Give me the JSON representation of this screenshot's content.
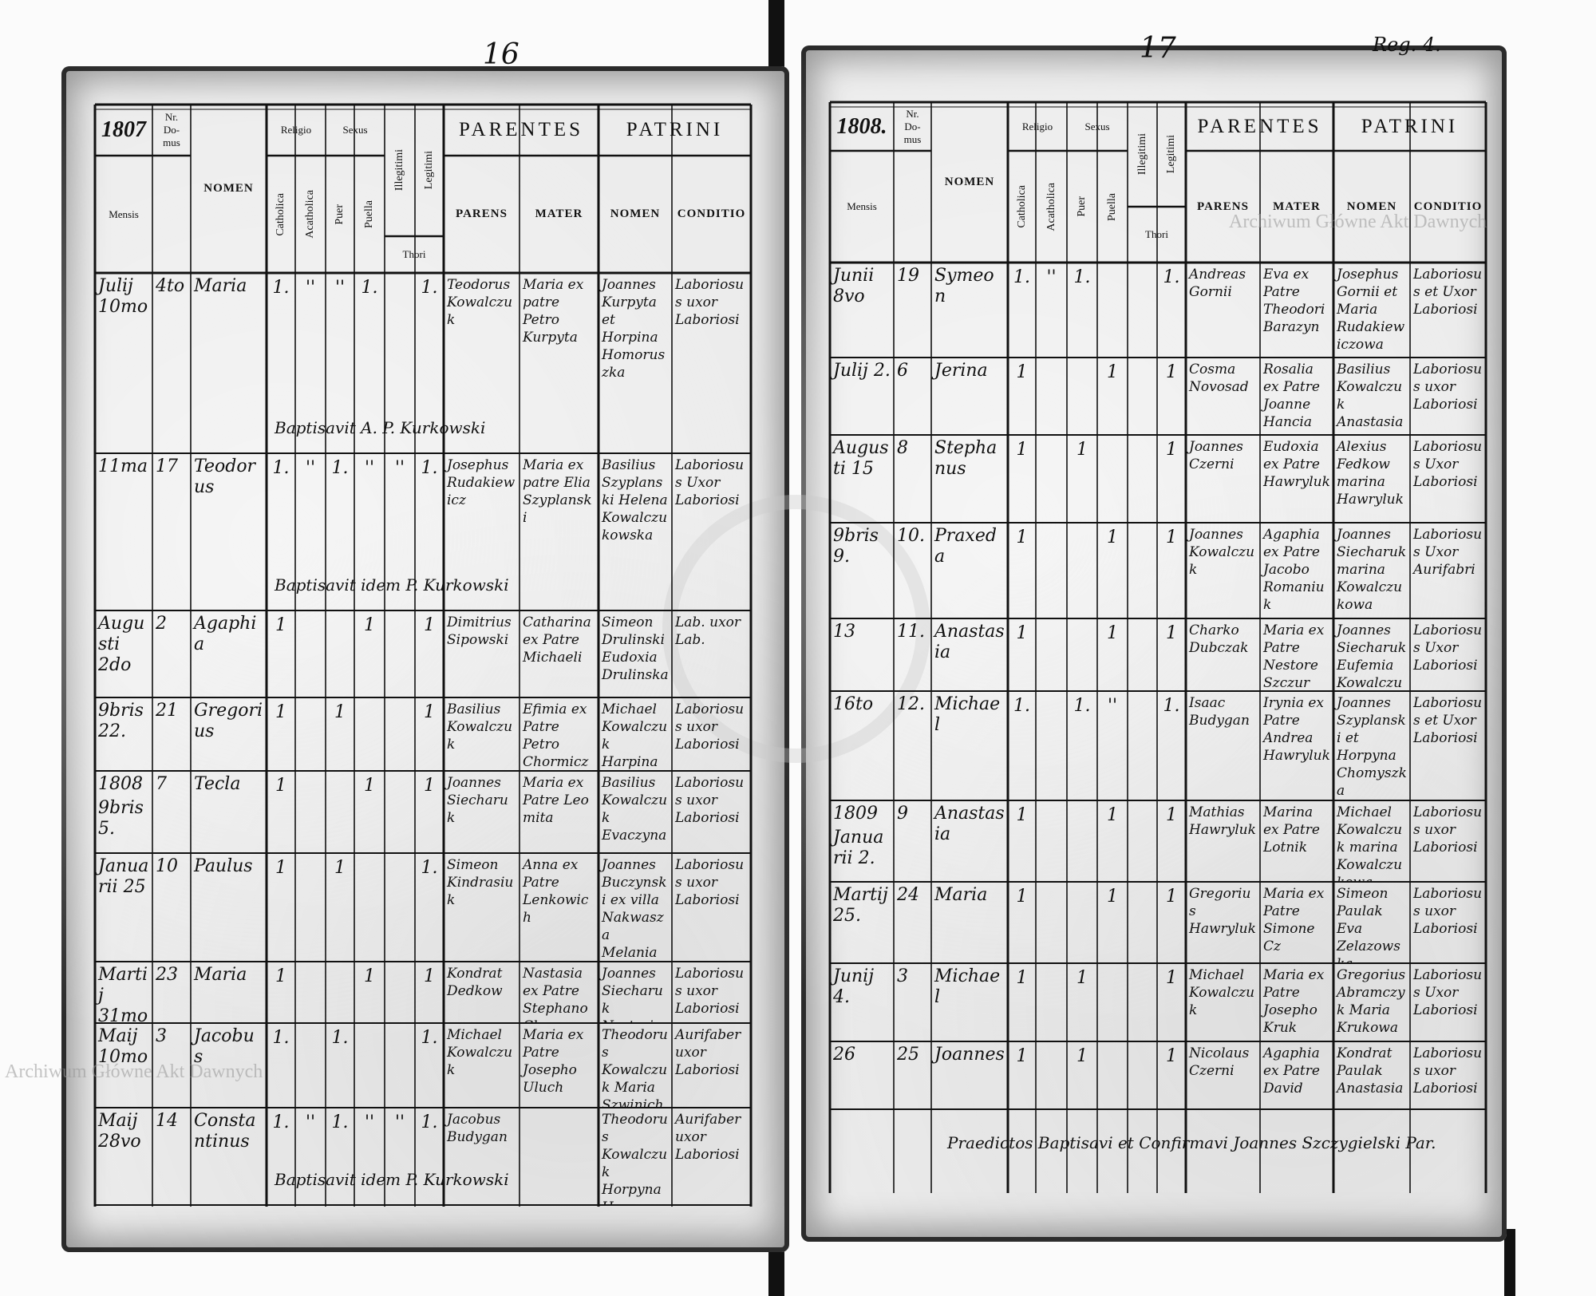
{
  "watermark": "Archiwum Główne Akt Dawnych",
  "header": {
    "nr": "Nr.",
    "domus": "Do-mus",
    "mensis": "Mensis",
    "nomen": "NOMEN",
    "religio": "Religio",
    "catholica": "Catholica",
    "acatholica": "Acatholica",
    "sexus": "Sexus",
    "puer": "Puer",
    "puella": "Puella",
    "illegitimi": "Illegitimi",
    "legitimi": "Legitimi",
    "thori": "Thori",
    "parentes": "PARENTES",
    "parens": "PARENS",
    "mater": "MATER",
    "patrini": "PATRINI",
    "patrini_nomen": "NOMEN",
    "conditio": "CONDITIO"
  },
  "pages": [
    {
      "page_number": "16",
      "year": "1807",
      "corner_note": "",
      "rows": [
        {
          "date": "Julij 10mo",
          "nr": "4to",
          "nomen": "Maria",
          "marks": [
            "1.",
            "''",
            "''",
            "1.",
            "",
            "1."
          ],
          "parens": "Teodorus Kowalczuk",
          "mater": "Maria ex patre Petro Kurpyta",
          "patrini": "Joannes Kurpyta et Horpina Homoruszka",
          "conditio": "Laboriosus uxor Laboriosi",
          "note": "Baptisavit A. P. Kurkowski"
        },
        {
          "date": "11ma",
          "nr": "17",
          "nomen": "Teodorus",
          "marks": [
            "1.",
            "''",
            "1.",
            "''",
            "''",
            "1."
          ],
          "parens": "Josephus Rudakiewicz",
          "mater": "Maria ex patre Elia Szyplanski",
          "patrini": "Basilius Szyplanski Helena Kowalczukowska",
          "conditio": "Laboriosus Uxor Laboriosi",
          "note": "Baptisavit idem P. Kurkowski"
        },
        {
          "date": "Augusti 2do",
          "nr": "2",
          "nomen": "Agaphia",
          "marks": [
            "1",
            "",
            "",
            "1",
            "",
            "1"
          ],
          "parens": "Dimitrius Sipowski",
          "mater": "Catharina ex Patre Michaeli",
          "patrini": "Simeon Drulinski Eudoxia Drulinska",
          "conditio": "Lab. uxor Lab.",
          "note": ""
        },
        {
          "date": "9bris 22.",
          "nr": "21",
          "nomen": "Gregorius",
          "marks": [
            "1",
            "",
            "1",
            "",
            "",
            "1"
          ],
          "parens": "Basilius Kowalczuk",
          "mater": "Efimia ex Patre Petro Chormiczy",
          "patrini": "Michael Kowalczuk Harpina",
          "conditio": "Laboriosus uxor Laboriosi",
          "note": ""
        },
        {
          "date": "9bris 5.",
          "nr": "7",
          "nomen": "Tecla",
          "marks": [
            "1",
            "",
            "",
            "1",
            "",
            "1"
          ],
          "parens": "Joannes Siecharuk",
          "mater": "Maria ex Patre Leo mita",
          "patrini": "Basilius Kowalczuk Evaczyna",
          "conditio": "Laboriosus uxor Laboriosi",
          "note": "",
          "year_mark": "1808"
        },
        {
          "date": "Januarii 25",
          "nr": "10",
          "nomen": "Paulus",
          "marks": [
            "1",
            "",
            "1",
            "",
            "",
            "1."
          ],
          "parens": "Simeon Kindrasiuk",
          "mater": "Anna ex Patre Lenkowich",
          "patrini": "Joannes Buczynski ex villa Nakwasza Melania Lementiuk",
          "conditio": "Laboriosus uxor Laboriosi",
          "note": ""
        },
        {
          "date": "Martij 31mo",
          "nr": "23",
          "nomen": "Maria",
          "marks": [
            "1",
            "",
            "",
            "1",
            "",
            "1"
          ],
          "parens": "Kondrat Dedkow",
          "mater": "Nastasia ex Patre Stephano Chme",
          "patrini": "Joannes Siecharuk Nastasia",
          "conditio": "Laboriosus uxor Laboriosi",
          "note": ""
        },
        {
          "date": "Maij 10mo",
          "nr": "3",
          "nomen": "Jacobus",
          "marks": [
            "1.",
            "",
            "1.",
            "",
            "",
            "1."
          ],
          "parens": "Michael Kowalczuk",
          "mater": "Maria ex Patre Josepho Uluch",
          "patrini": "Theodorus Kowalczuk Maria Szwinicha",
          "conditio": "Aurifaber uxor Laboriosi",
          "note": ""
        },
        {
          "date": "Maij 28vo",
          "nr": "14",
          "nomen": "Constantinus",
          "marks": [
            "1.",
            "''",
            "1.",
            "''",
            "''",
            "1."
          ],
          "parens": "Jacobus Budygan",
          "mater": "",
          "patrini": "Theodorus Kowalczuk Horpyna Homyczykowa",
          "conditio": "Aurifaber uxor Laboriosi",
          "note": "Baptisavit idem P. Kurkowski"
        }
      ],
      "footer_note": ""
    },
    {
      "page_number": "17",
      "year": "1808.",
      "corner_note": "Reg. 4.",
      "rows": [
        {
          "date": "Junii 8vo",
          "nr": "19",
          "nomen": "Symeon",
          "marks": [
            "1.",
            "''",
            "1.",
            "",
            "",
            "1."
          ],
          "parens": "Andreas Gornii",
          "mater": "Eva ex Patre Theodori Barazyn",
          "patrini": "Josephus Gornii et Maria Rudakiewiczowa",
          "conditio": "Laboriosus et Uxor Laboriosi",
          "note": ""
        },
        {
          "date": "Julij 2.",
          "nr": "6",
          "nomen": "Jerina",
          "marks": [
            "1",
            "",
            "",
            "1",
            "",
            "1"
          ],
          "parens": "Cosma Novosad",
          "mater": "Rosalia ex Patre Joanne Hancia",
          "patrini": "Basilius Kowalczuk Anastasia",
          "conditio": "Laboriosus uxor Laboriosi",
          "note": ""
        },
        {
          "date": "Augusti 15",
          "nr": "8",
          "nomen": "Stephanus",
          "marks": [
            "1",
            "",
            "1",
            "",
            "",
            "1"
          ],
          "parens": "Joannes Czerni",
          "mater": "Eudoxia ex Patre Hawryluk",
          "patrini": "Alexius Fedkow marina Hawryluk",
          "conditio": "Laboriosus Uxor Laboriosi",
          "note": ""
        },
        {
          "date": "9bris 9.",
          "nr": "10.",
          "nomen": "Praxeda",
          "marks": [
            "1",
            "",
            "",
            "1",
            "",
            "1"
          ],
          "parens": "Joannes Kowalczuk",
          "mater": "Agaphia ex Patre Jacobo Romaniuk",
          "patrini": "Joannes Siecharuk marina Kowalczukowa",
          "conditio": "Laboriosus Uxor Aurifabri",
          "note": ""
        },
        {
          "date": "13",
          "nr": "11.",
          "nomen": "Anastasia",
          "marks": [
            "1",
            "",
            "",
            "1",
            "",
            "1"
          ],
          "parens": "Charko Dubczak",
          "mater": "Maria ex Patre Nestore Szczur",
          "patrini": "Joannes Siecharuk Eufemia Kowalczukowa",
          "conditio": "Laboriosus Uxor Laboriosi",
          "note": ""
        },
        {
          "date": "16to",
          "nr": "12.",
          "nomen": "Michael",
          "marks": [
            "1.",
            "",
            "1.",
            "''",
            "",
            "1."
          ],
          "parens": "Isaac Budygan",
          "mater": "Irynia ex Patre Andrea Hawryluk",
          "patrini": "Joannes Szyplanski et Horpyna Chomyszka",
          "conditio": "Laboriosus et Uxor Laboriosi",
          "note": ""
        },
        {
          "date": "Januarii 2.",
          "nr": "9",
          "nomen": "Anastasia",
          "marks": [
            "1",
            "",
            "",
            "1",
            "",
            "1"
          ],
          "parens": "Mathias Hawryluk",
          "mater": "Marina ex Patre Lotnik",
          "patrini": "Michael Kowalczuk marina Kowalczukowa",
          "conditio": "Laboriosus uxor Laboriosi",
          "note": "",
          "year_mark": "1809"
        },
        {
          "date": "Martij 25.",
          "nr": "24",
          "nomen": "Maria",
          "marks": [
            "1",
            "",
            "",
            "1",
            "",
            "1"
          ],
          "parens": "Gregorius Hawryluk",
          "mater": "Maria ex Patre Simone Cz",
          "patrini": "Simeon Paulak Eva Zelazowska",
          "conditio": "Laboriosus uxor Laboriosi",
          "note": ""
        },
        {
          "date": "Junij 4.",
          "nr": "3",
          "nomen": "Michael",
          "marks": [
            "1",
            "",
            "1",
            "",
            "",
            "1"
          ],
          "parens": "Michael Kowalczuk",
          "mater": "Maria ex Patre Josepho Kruk",
          "patrini": "Gregorius Abramczyk Maria Krukowa",
          "conditio": "Laboriosus Uxor Laboriosi",
          "note": ""
        },
        {
          "date": "26",
          "nr": "25",
          "nomen": "Joannes",
          "marks": [
            "1",
            "",
            "1",
            "",
            "",
            "1"
          ],
          "parens": "Nicolaus Czerni",
          "mater": "Agaphia ex Patre David",
          "patrini": "Kondrat Paulak Anastasia",
          "conditio": "Laboriosus uxor Laboriosi",
          "note": ""
        }
      ],
      "footer_note": "Praedictos Baptisavi et Confirmavi Joannes Szczygielski Par."
    }
  ]
}
